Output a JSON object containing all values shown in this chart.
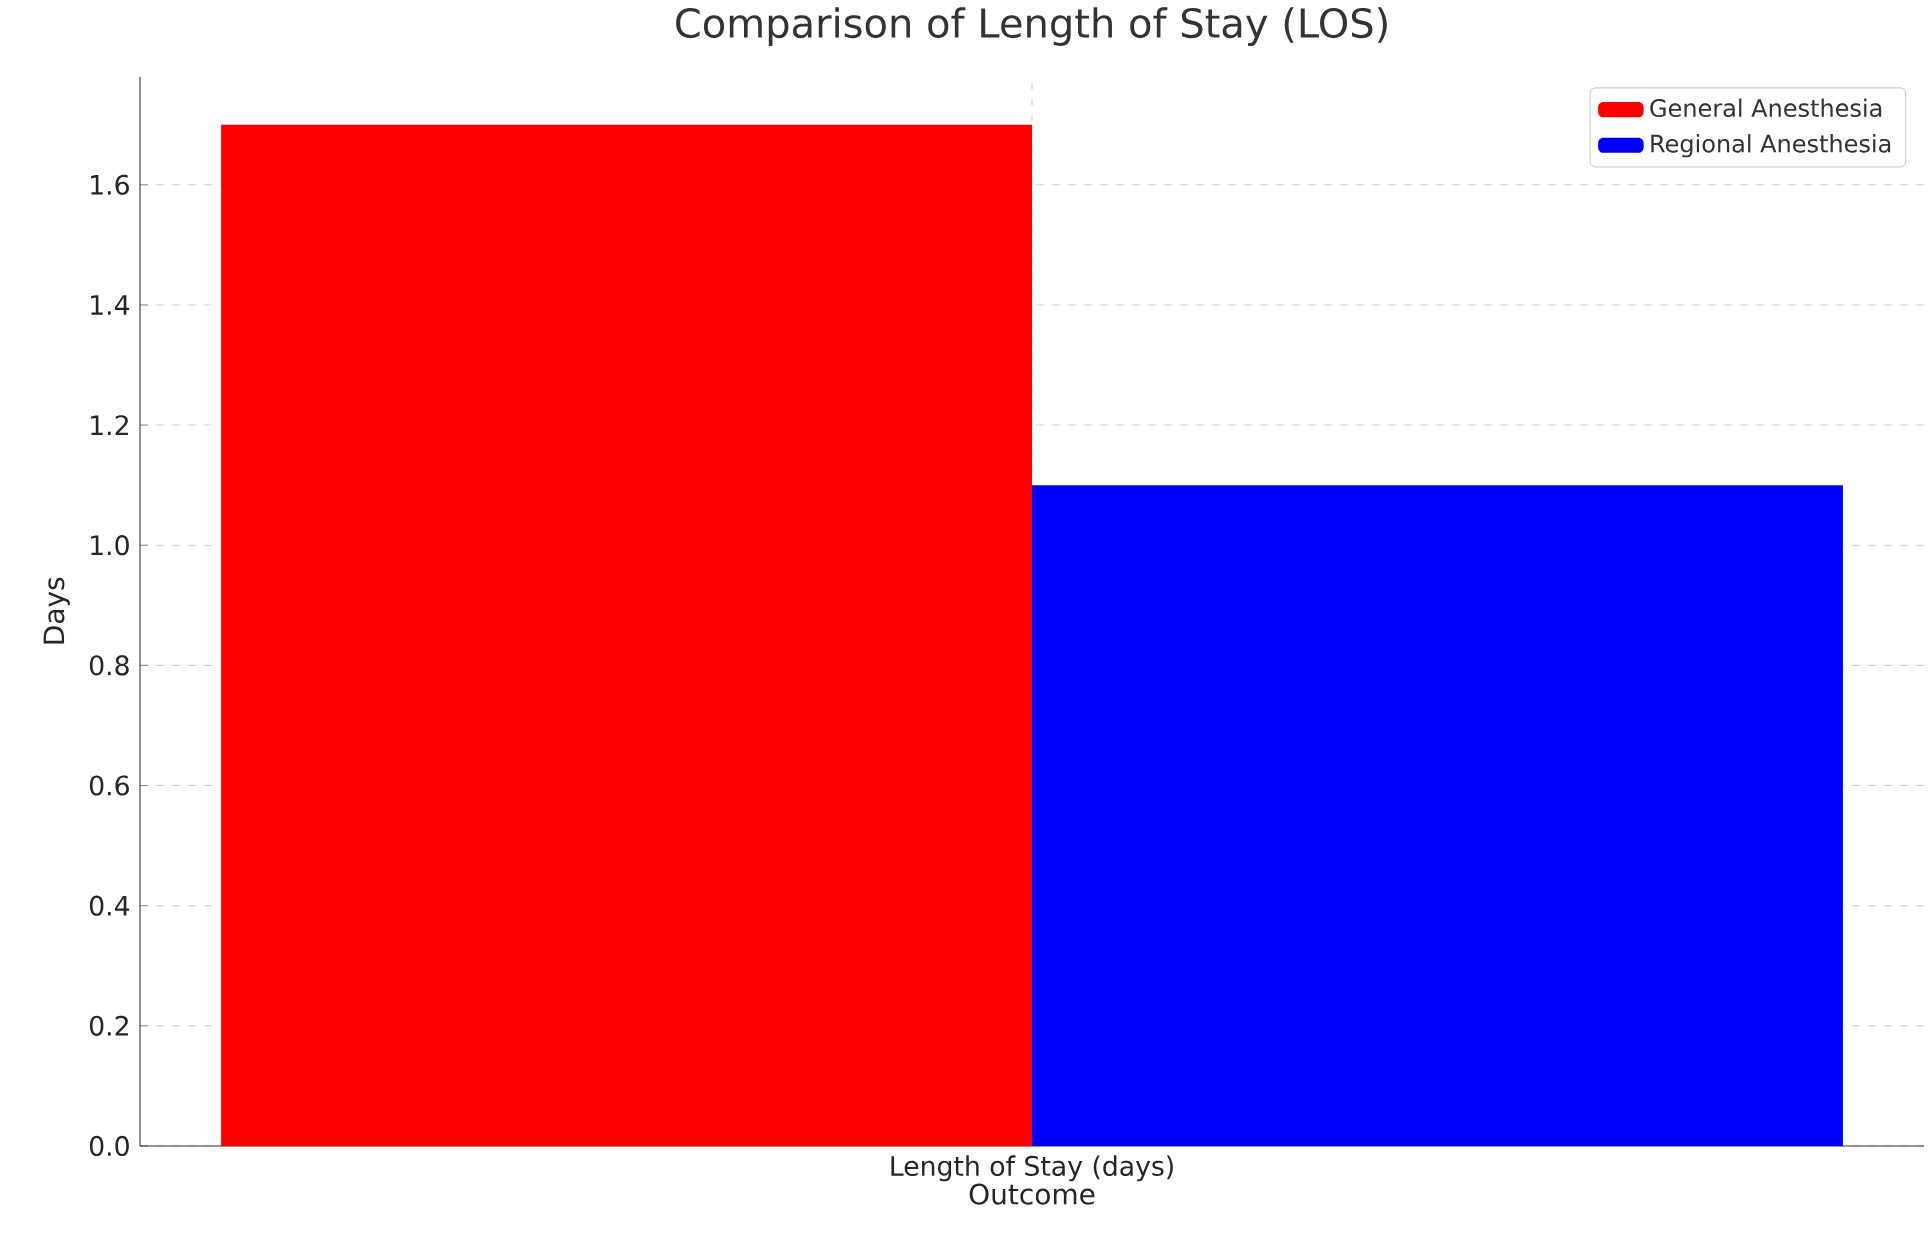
{
  "chart_data": {
    "type": "bar",
    "title": "Comparison of Length of Stay (LOS)",
    "xlabel": "Outcome",
    "ylabel": "Days",
    "categories": [
      "Length of Stay (days)"
    ],
    "series": [
      {
        "name": "General Anesthesia",
        "color": "#ff0000",
        "values": [
          1.7
        ]
      },
      {
        "name": "Regional Anesthesia",
        "color": "#0000ff",
        "values": [
          1.1
        ]
      }
    ],
    "ylim": [
      0,
      1.78
    ],
    "yticks": [
      {
        "value": 0,
        "label": "0.0"
      },
      0.2,
      0.4,
      0.6,
      0.8,
      {
        "value": 1,
        "label": "1.0"
      },
      1.2,
      1.4,
      1.6
    ],
    "grid": true,
    "legend": "top right"
  }
}
